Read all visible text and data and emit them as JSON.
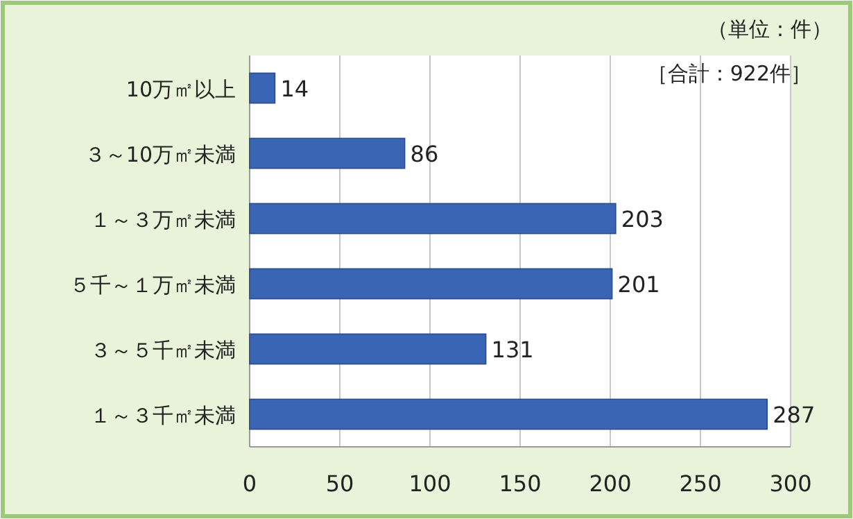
{
  "chart_data": {
    "type": "bar",
    "orientation": "horizontal",
    "categories": [
      "10万㎡以上",
      "３～10万㎡未満",
      "１～３万㎡未満",
      "５千～１万㎡未満",
      "３～５千㎡未満",
      "１～３千㎡未満"
    ],
    "values": [
      14,
      86,
      203,
      201,
      131,
      287
    ],
    "color": "#3a64b4",
    "xlim": [
      0,
      300
    ],
    "xticks": [
      0,
      50,
      100,
      150,
      200,
      250,
      300
    ],
    "grid": "x",
    "data_labels": true,
    "annotations": [
      "（単位：件）",
      "［合計：922件］"
    ]
  }
}
